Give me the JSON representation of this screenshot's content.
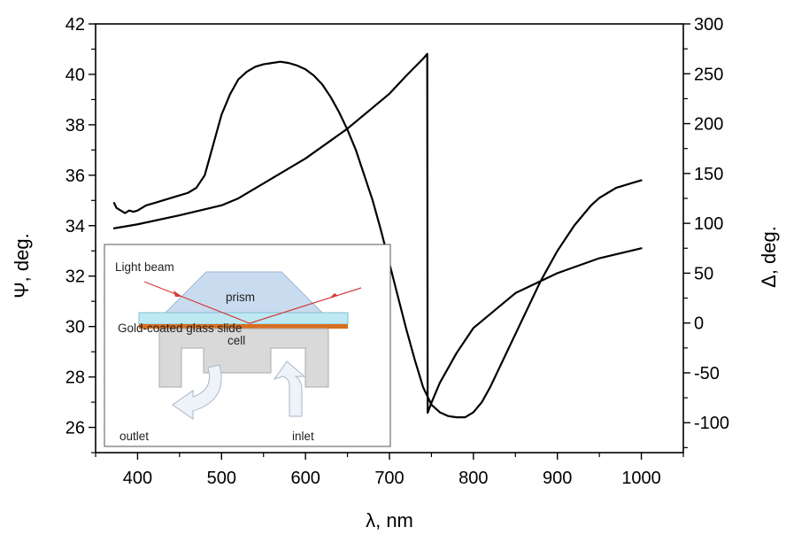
{
  "chart_data": {
    "type": "line",
    "xlabel": "λ, nm",
    "ylabel_left": "Ψ, deg.",
    "ylabel_right": "Δ, deg.",
    "xlim": [
      350,
      1050
    ],
    "ylim_left": [
      25,
      42
    ],
    "ylim_right": [
      -130,
      300
    ],
    "x_ticks": [
      "400",
      "500",
      "600",
      "700",
      "800",
      "900",
      "1000"
    ],
    "y_left_ticks": [
      "26",
      "28",
      "30",
      "32",
      "34",
      "36",
      "38",
      "40",
      "42"
    ],
    "y_right_ticks": [
      "-100",
      "-50",
      "0",
      "50",
      "100",
      "150",
      "200",
      "250",
      "300"
    ],
    "grid": false,
    "series": [
      {
        "axis": "left",
        "x": [
          372,
          375,
          380,
          385,
          390,
          395,
          400,
          410,
          420,
          430,
          440,
          450,
          460,
          470,
          480,
          490,
          500,
          510,
          520,
          530,
          540,
          550,
          560,
          570,
          580,
          590,
          600,
          610,
          620,
          630,
          640,
          650,
          660,
          670,
          680,
          690,
          700,
          710,
          720,
          730,
          740,
          750,
          760,
          770,
          780,
          790,
          800,
          810,
          820,
          830,
          840,
          850,
          860,
          870,
          880,
          890,
          900,
          910,
          920,
          930,
          940,
          950,
          960,
          970,
          980,
          990,
          1000
        ],
        "y": [
          34.9,
          34.7,
          34.6,
          34.5,
          34.6,
          34.55,
          34.6,
          34.8,
          34.9,
          35.0,
          35.1,
          35.2,
          35.3,
          35.5,
          36.0,
          37.2,
          38.4,
          39.2,
          39.8,
          40.1,
          40.3,
          40.4,
          40.45,
          40.5,
          40.45,
          40.35,
          40.2,
          39.95,
          39.6,
          39.1,
          38.5,
          37.8,
          37.0,
          36.0,
          35.0,
          33.8,
          32.5,
          31.2,
          29.9,
          28.7,
          27.6,
          26.9,
          26.6,
          26.45,
          26.4,
          26.4,
          26.6,
          27.0,
          27.6,
          28.3,
          29.0,
          29.7,
          30.4,
          31.1,
          31.8,
          32.4,
          33.0,
          33.5,
          34.0,
          34.4,
          34.8,
          35.1,
          35.3,
          35.5,
          35.6,
          35.7,
          35.8
        ]
      },
      {
        "axis": "right",
        "x": [
          372,
          400,
          450,
          500,
          520,
          550,
          600,
          650,
          700,
          720,
          740,
          745,
          745.5,
          750,
          760,
          780,
          800,
          850,
          900,
          950,
          1000
        ],
        "y": [
          95,
          99,
          108,
          118,
          125,
          140,
          165,
          195,
          230,
          248,
          265,
          270,
          -90,
          -80,
          -60,
          -30,
          -5,
          30,
          50,
          65,
          75
        ]
      }
    ]
  },
  "inset": {
    "light_beam": "Light beam",
    "prism": "prism",
    "slide": "Gold-coated glass slide",
    "cell": "cell",
    "outlet": "outlet",
    "inlet": "inlet"
  }
}
